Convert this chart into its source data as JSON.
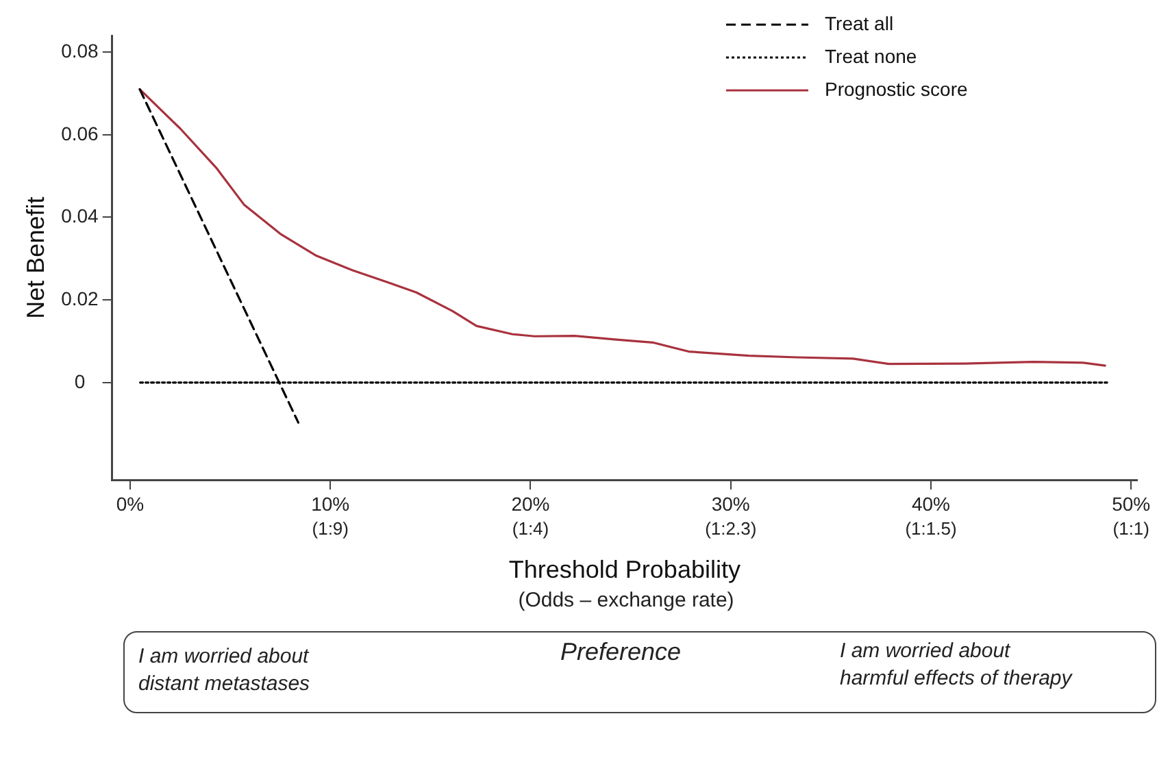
{
  "chart_data": {
    "type": "line",
    "xlabel": "Threshold Probability",
    "ylabel": "Net Benefit",
    "annotations": [
      "(Odds – exchange rate)",
      "I am worried about\ndistant metastases",
      "Preference",
      "I am worried about\nharmful effects of therapy",
      "(1:9)",
      "(1:4)",
      "(1:2.3)",
      "(1:1.5)",
      "(1:1)"
    ],
    "xlim": [
      -0.9,
      50.3
    ],
    "ylim": [
      -0.0236,
      0.084
    ],
    "xticks": [
      {
        "value": 0,
        "label": "0%"
      },
      {
        "value": 10,
        "label": "10%"
      },
      {
        "value": 20,
        "label": "20%"
      },
      {
        "value": 30,
        "label": "30%"
      },
      {
        "value": 40,
        "label": "40%"
      },
      {
        "value": 50,
        "label": "50%"
      }
    ],
    "yticks": [
      0,
      0.02,
      0.04,
      0.06,
      0.08
    ],
    "legend": "top right",
    "marker": "none",
    "series": [
      {
        "name": "Treat all",
        "color": "#000000",
        "line_style": "dashed",
        "x": [
          0.48,
          8.4
        ],
        "values": [
          0.071,
          -0.0097
        ]
      },
      {
        "name": "Treat none",
        "color": "#000000",
        "line_style": "dotted",
        "x": [
          0.5,
          48.8
        ],
        "values": [
          0,
          0
        ]
      },
      {
        "name": "Prognostic score",
        "color": "#a8323e",
        "line_style": "solid",
        "x": [
          0.48,
          2.5,
          4.3,
          5.7,
          7.5,
          9.3,
          11.1,
          12.9,
          14.3,
          16.1,
          17.3,
          19.1,
          20.2,
          22.2,
          24.3,
          26.1,
          27.9,
          30.9,
          33.3,
          36.1,
          37.9,
          41.7,
          45.1,
          47.6,
          48.7
        ],
        "values": [
          0.071,
          0.0615,
          0.052,
          0.043,
          0.036,
          0.0307,
          0.0272,
          0.0242,
          0.0218,
          0.0173,
          0.0137,
          0.0117,
          0.0112,
          0.0113,
          0.0104,
          0.0097,
          0.0075,
          0.0065,
          0.0061,
          0.0058,
          0.0045,
          0.0046,
          0.005,
          0.0048,
          0.0041
        ]
      }
    ]
  }
}
